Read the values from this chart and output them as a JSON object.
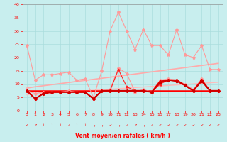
{
  "x": [
    0,
    1,
    2,
    3,
    4,
    5,
    6,
    7,
    8,
    9,
    10,
    11,
    12,
    13,
    14,
    15,
    16,
    17,
    18,
    19,
    20,
    21,
    22,
    23
  ],
  "series": [
    {
      "name": "gust_light",
      "color": "#FF9999",
      "lw": 0.8,
      "marker": "*",
      "markersize": 3,
      "values": [
        24.5,
        11.5,
        13.5,
        13.5,
        14.0,
        14.5,
        11.5,
        12.0,
        5.0,
        15.0,
        30.0,
        37.0,
        30.0,
        23.0,
        30.5,
        24.5,
        24.5,
        21.0,
        30.5,
        21.0,
        20.0,
        24.5,
        15.5,
        15.5
      ]
    },
    {
      "name": "mean_light",
      "color": "#FF9999",
      "lw": 0.8,
      "marker": "D",
      "markersize": 2,
      "values": [
        7.5,
        6.5,
        7.0,
        7.0,
        7.0,
        7.5,
        7.0,
        7.0,
        4.5,
        7.5,
        8.0,
        16.0,
        14.0,
        7.0,
        8.0,
        7.0,
        11.5,
        12.0,
        11.5,
        10.0,
        8.0,
        12.0,
        7.5,
        7.5
      ]
    },
    {
      "name": "trend_gust",
      "color": "#FFAAAA",
      "lw": 1.2,
      "marker": null,
      "markersize": 0,
      "values": [
        8.5,
        9.0,
        9.4,
        9.8,
        10.2,
        10.6,
        11.0,
        11.4,
        11.8,
        12.2,
        12.6,
        13.0,
        13.4,
        13.8,
        14.2,
        14.6,
        15.0,
        15.4,
        15.8,
        16.2,
        16.6,
        17.0,
        17.4,
        17.8
      ]
    },
    {
      "name": "trend_mean",
      "color": "#FFBBBB",
      "lw": 1.0,
      "marker": null,
      "markersize": 0,
      "values": [
        6.0,
        6.3,
        6.5,
        6.7,
        6.9,
        7.1,
        7.3,
        7.5,
        7.7,
        7.9,
        8.1,
        8.3,
        8.5,
        8.7,
        8.9,
        9.1,
        9.3,
        9.5,
        9.7,
        9.9,
        10.1,
        10.3,
        10.5,
        10.7
      ]
    },
    {
      "name": "dark_gust",
      "color": "#FF2222",
      "lw": 0.8,
      "marker": "^",
      "markersize": 2,
      "values": [
        7.5,
        4.5,
        6.5,
        7.0,
        7.0,
        7.0,
        7.0,
        7.0,
        4.5,
        7.5,
        7.5,
        15.5,
        9.0,
        7.5,
        7.5,
        7.0,
        10.0,
        11.5,
        11.5,
        9.5,
        7.5,
        11.5,
        7.5,
        7.5
      ]
    },
    {
      "name": "dark_mean1",
      "color": "#DD0000",
      "lw": 1.5,
      "marker": "D",
      "markersize": 2,
      "values": [
        7.5,
        4.5,
        6.5,
        7.0,
        7.0,
        7.0,
        7.0,
        7.0,
        4.5,
        7.5,
        7.5,
        7.5,
        7.5,
        7.5,
        7.5,
        7.0,
        11.0,
        11.5,
        11.5,
        9.5,
        7.5,
        11.5,
        7.5,
        7.5
      ]
    },
    {
      "name": "flat_red",
      "color": "#FF0000",
      "lw": 1.8,
      "marker": null,
      "markersize": 0,
      "values": [
        7.5,
        7.5,
        7.5,
        7.5,
        7.5,
        7.5,
        7.5,
        7.5,
        7.5,
        7.5,
        7.5,
        7.5,
        7.5,
        7.5,
        7.5,
        7.5,
        7.5,
        7.5,
        7.5,
        7.5,
        7.5,
        7.5,
        7.5,
        7.5
      ]
    },
    {
      "name": "dark_mean2",
      "color": "#CC0000",
      "lw": 1.0,
      "marker": "s",
      "markersize": 2,
      "values": [
        7.5,
        4.5,
        6.5,
        7.0,
        7.0,
        7.0,
        7.0,
        7.0,
        4.5,
        7.5,
        7.5,
        7.5,
        7.5,
        7.5,
        7.5,
        7.0,
        10.5,
        11.5,
        11.0,
        9.5,
        7.5,
        11.0,
        7.5,
        7.5
      ]
    }
  ],
  "wind_symbols": [
    "↙",
    "↗",
    "↑",
    "↑",
    "↑",
    "↗",
    "↑",
    "↑",
    "→",
    "→",
    "↙",
    "→",
    "↗",
    "↗",
    "→",
    "↗",
    "↙",
    "↙",
    "↙",
    "↙",
    "↙",
    "↙",
    "↙",
    "↙"
  ],
  "xlabel": "Vent moyen/en rafales ( km/h )",
  "xlim": [
    -0.5,
    23.5
  ],
  "ylim": [
    0,
    40
  ],
  "yticks": [
    0,
    5,
    10,
    15,
    20,
    25,
    30,
    35,
    40
  ],
  "xticks": [
    0,
    1,
    2,
    3,
    4,
    5,
    6,
    7,
    8,
    9,
    10,
    11,
    12,
    13,
    14,
    15,
    16,
    17,
    18,
    19,
    20,
    21,
    22,
    23
  ],
  "bg_color": "#C8EEEE",
  "grid_color": "#AADDDD",
  "xlabel_color": "#FF0000",
  "tick_color": "#FF0000",
  "axis_color": "#999999",
  "title": ""
}
